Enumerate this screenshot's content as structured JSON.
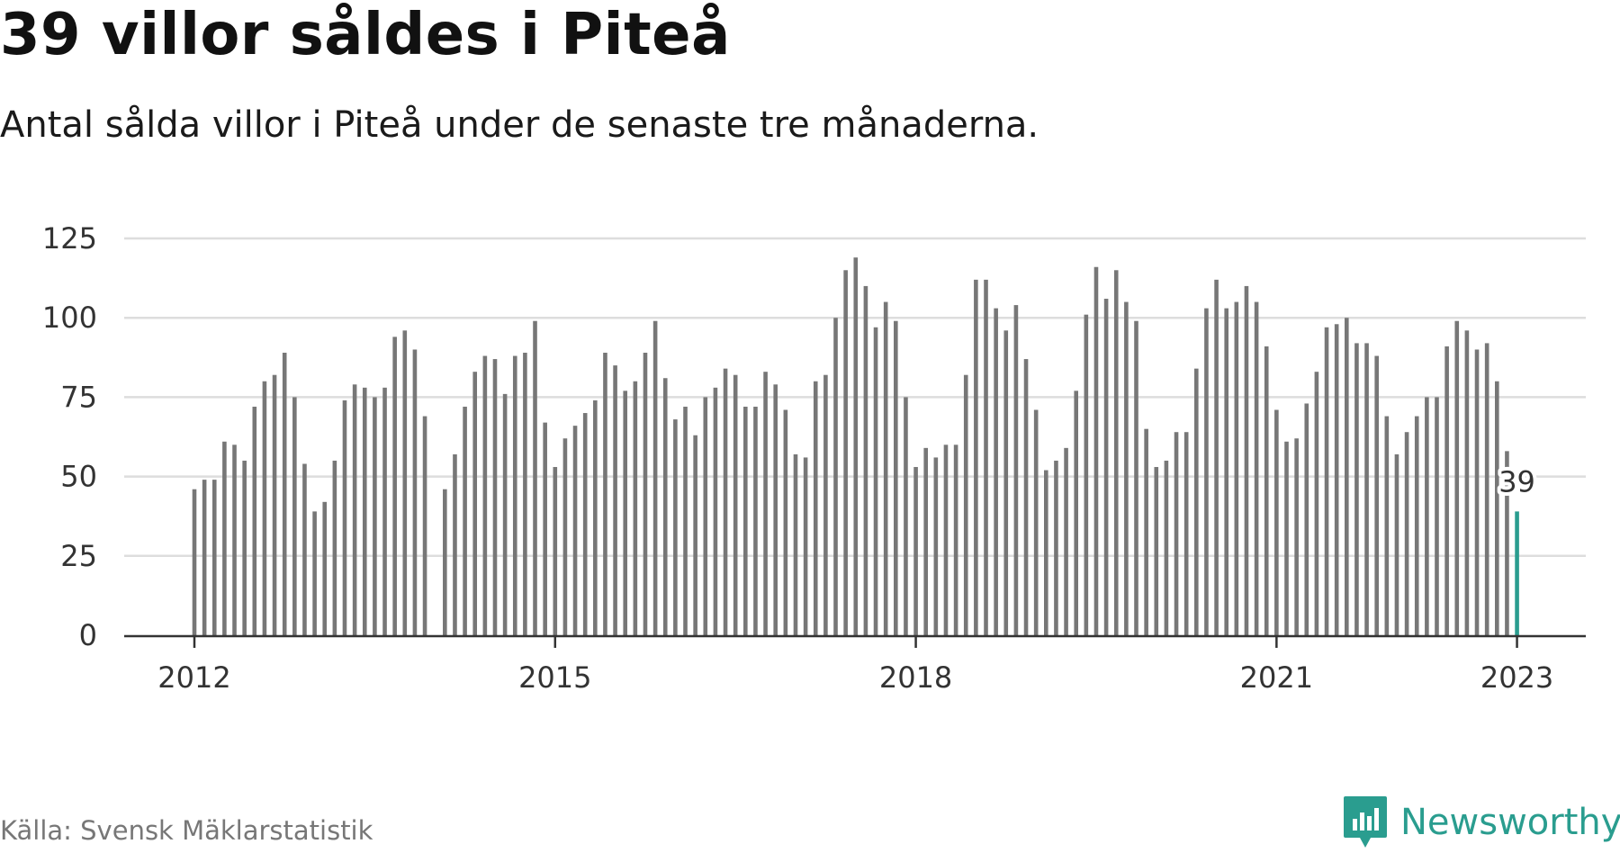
{
  "header": {
    "title": "39 villor såldes i Piteå",
    "subtitle": "Antal sålda villor i Piteå under de senaste tre månaderna."
  },
  "footer": {
    "source": "Källa: Svensk Mäklarstatistik",
    "brand": "Newsworthy",
    "brand_icon": "bar-chart-speech-bubble-icon"
  },
  "colors": {
    "bar": "#777777",
    "highlight": "#2a9d8f",
    "grid": "#dddddd",
    "axis": "#333333"
  },
  "chart_data": {
    "type": "bar",
    "title": "39 villor såldes i Piteå",
    "subtitle": "Antal sålda villor i Piteå under de senaste tre månaderna.",
    "xlabel": "",
    "ylabel": "",
    "ylim": [
      0,
      125
    ],
    "yticks": [
      0,
      25,
      50,
      75,
      100,
      125
    ],
    "xticks": [
      {
        "label": "2012",
        "index": 0
      },
      {
        "label": "2015",
        "index": 36
      },
      {
        "label": "2018",
        "index": 72
      },
      {
        "label": "2021",
        "index": 108
      },
      {
        "label": "2023",
        "index": 132
      }
    ],
    "grid": true,
    "start": "2012-01",
    "frequency": "monthly, rolling three-month total",
    "values": [
      46,
      49,
      49,
      61,
      60,
      55,
      72,
      80,
      82,
      89,
      75,
      54,
      39,
      42,
      55,
      74,
      79,
      78,
      75,
      78,
      94,
      96,
      90,
      69,
      null,
      46,
      57,
      72,
      83,
      88,
      87,
      76,
      88,
      89,
      99,
      67,
      53,
      62,
      66,
      70,
      74,
      89,
      85,
      77,
      80,
      89,
      99,
      81,
      68,
      72,
      63,
      75,
      78,
      84,
      82,
      72,
      72,
      83,
      79,
      71,
      57,
      56,
      80,
      82,
      100,
      115,
      119,
      110,
      97,
      105,
      99,
      75,
      53,
      59,
      56,
      60,
      60,
      82,
      112,
      112,
      103,
      96,
      104,
      87,
      71,
      52,
      55,
      59,
      77,
      101,
      116,
      106,
      115,
      105,
      99,
      65,
      53,
      55,
      64,
      64,
      84,
      103,
      112,
      103,
      105,
      110,
      105,
      91,
      71,
      61,
      62,
      73,
      83,
      97,
      98,
      100,
      92,
      92,
      88,
      69,
      57,
      64,
      69,
      75,
      75,
      91,
      99,
      96,
      90,
      92,
      80,
      58,
      39
    ],
    "highlight": {
      "index": 132,
      "value": 39,
      "label": "39"
    }
  }
}
